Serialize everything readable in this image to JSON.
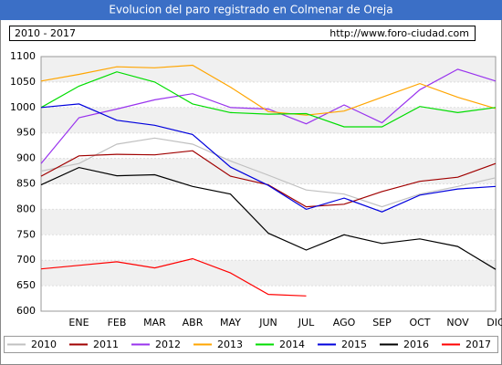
{
  "chart_data": {
    "type": "line",
    "title": "Evolucion del paro registrado en Colmenar de Oreja",
    "period": "2010 - 2017",
    "source": "http://www.foro-ciudad.com",
    "categories": [
      null,
      "ENE",
      "FEB",
      "MAR",
      "ABR",
      "MAY",
      "JUN",
      "JUL",
      "AGO",
      "SEP",
      "OCT",
      "NOV",
      "DIC"
    ],
    "ylim": [
      600,
      1100
    ],
    "yticks": [
      600,
      650,
      700,
      750,
      800,
      850,
      900,
      950,
      1000,
      1050,
      1100
    ],
    "grid": true,
    "series": [
      {
        "name": "2010",
        "color": "#c0c0c0",
        "values": [
          875,
          890,
          928,
          940,
          928,
          895,
          867,
          838,
          830,
          805,
          830,
          845,
          862
        ]
      },
      {
        "name": "2011",
        "color": "#a00000",
        "values": [
          865,
          905,
          908,
          907,
          915,
          865,
          848,
          805,
          810,
          835,
          855,
          863,
          890
        ]
      },
      {
        "name": "2012",
        "color": "#9933ee",
        "values": [
          890,
          980,
          997,
          1015,
          1027,
          1000,
          997,
          968,
          1005,
          970,
          1035,
          1075,
          1052
        ]
      },
      {
        "name": "2013",
        "color": "#ffa500",
        "values": [
          1052,
          1065,
          1080,
          1078,
          1083,
          1040,
          992,
          985,
          993,
          1020,
          1047,
          1020,
          998
        ]
      },
      {
        "name": "2014",
        "color": "#00dd00",
        "values": [
          1000,
          1042,
          1070,
          1050,
          1007,
          990,
          987,
          988,
          962,
          962,
          1002,
          990,
          1000
        ]
      },
      {
        "name": "2015",
        "color": "#0000dd",
        "values": [
          1000,
          1007,
          975,
          965,
          947,
          883,
          847,
          800,
          822,
          795,
          828,
          840,
          845
        ]
      },
      {
        "name": "2016",
        "color": "#000000",
        "values": [
          848,
          882,
          866,
          868,
          845,
          830,
          753,
          720,
          750,
          733,
          742,
          727,
          682
        ]
      },
      {
        "name": "2017",
        "color": "#ff0000",
        "values": [
          683,
          690,
          697,
          685,
          703,
          675,
          633,
          630,
          null,
          null,
          null,
          null,
          null
        ]
      }
    ]
  }
}
